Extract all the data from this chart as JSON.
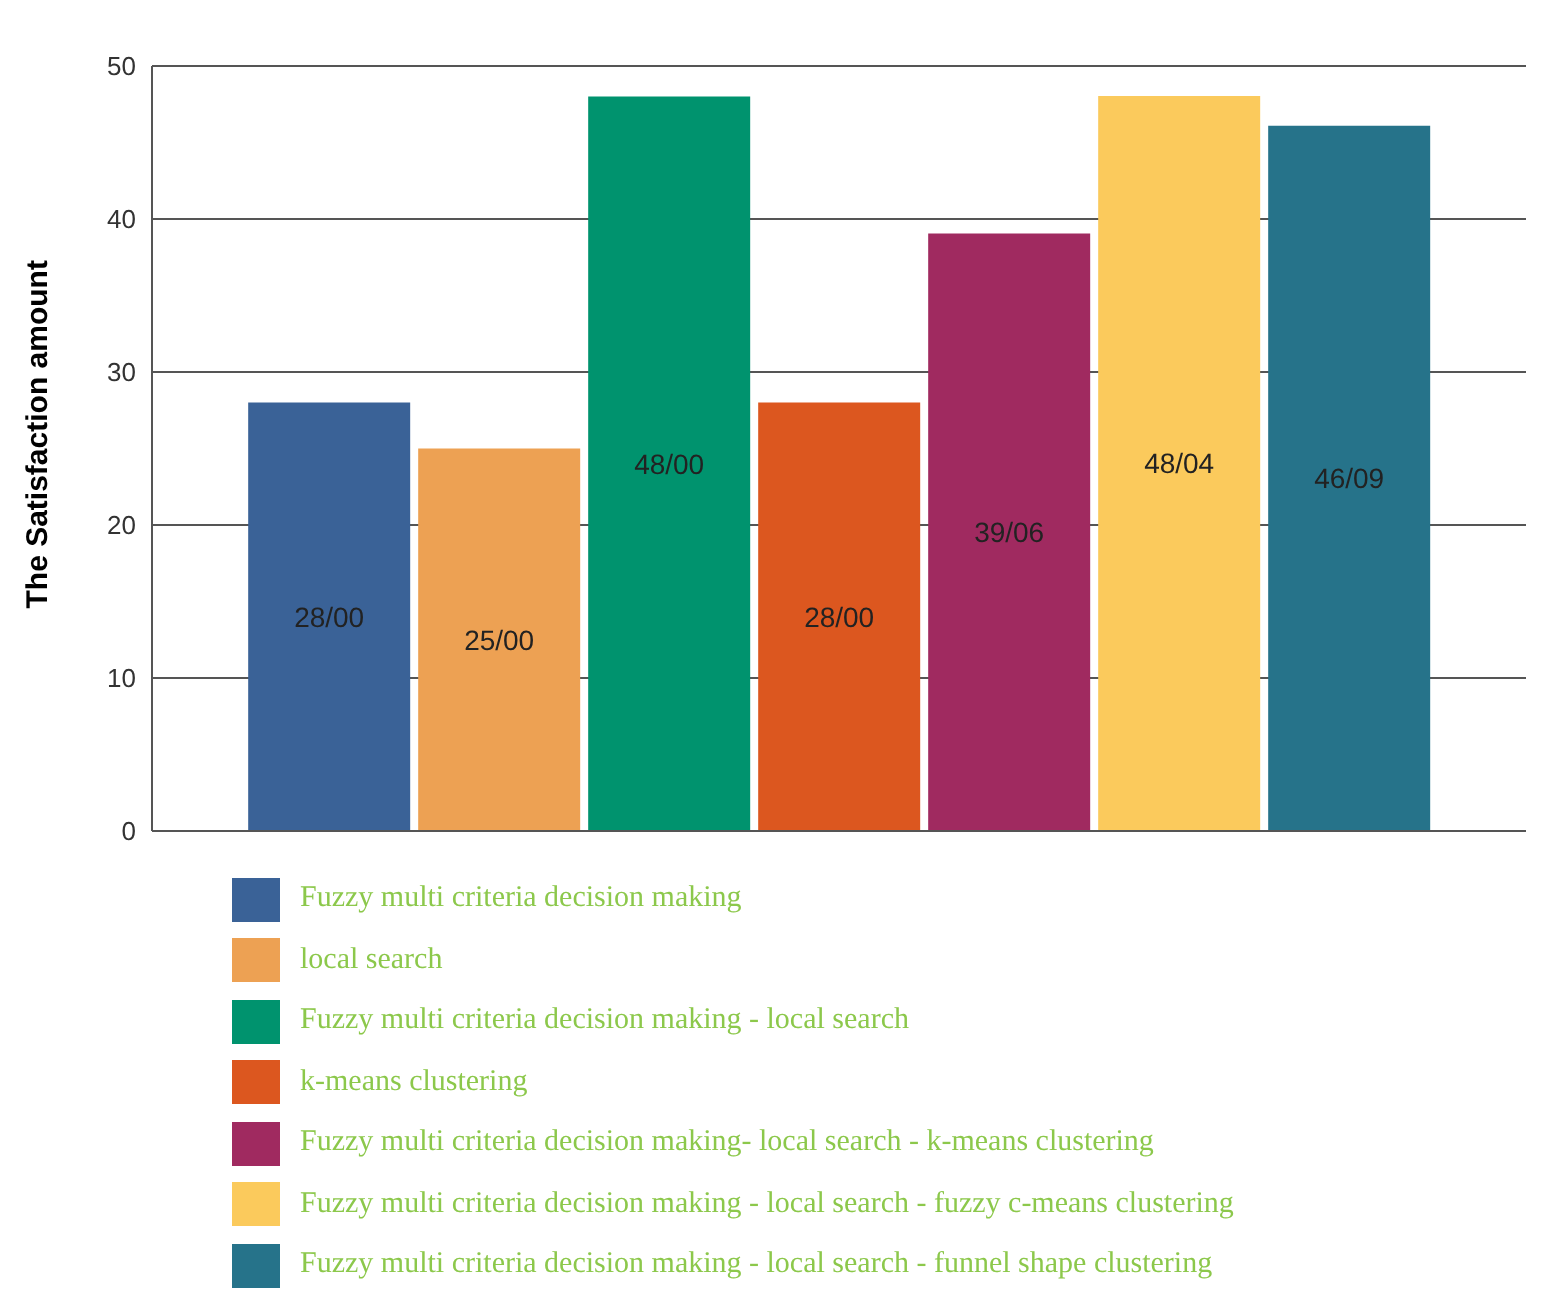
{
  "chart_data": {
    "type": "bar",
    "ylabel": "The Satisfaction amount",
    "categories": [
      null
    ],
    "series": [
      {
        "name": "Fuzzy multi criteria decision making",
        "color": "#3a6297",
        "values": [
          28
        ],
        "value_labels": [
          "28/00"
        ]
      },
      {
        "name": "local search",
        "color": "#eda153",
        "values": [
          25
        ],
        "value_labels": [
          "25/00"
        ]
      },
      {
        "name": "Fuzzy multi criteria decision making - local search",
        "color": "#00936e",
        "values": [
          48
        ],
        "value_labels": [
          "48/00"
        ]
      },
      {
        "name": "k-means clustering",
        "color": "#dc571f",
        "values": [
          28
        ],
        "value_labels": [
          "28/00"
        ]
      },
      {
        "name": "Fuzzy multi criteria decision making- local search - k-means clustering",
        "color": "#a02a60",
        "values": [
          39.06
        ],
        "value_labels": [
          "39/06"
        ]
      },
      {
        "name": "Fuzzy multi criteria decision making - local search - fuzzy c-means clustering",
        "color": "#fbca5c",
        "values": [
          48.04
        ],
        "value_labels": [
          "48/04"
        ]
      },
      {
        "name": "Fuzzy multi criteria decision making - local search - funnel shape clustering",
        "color": "#26738a",
        "values": [
          46.09
        ],
        "value_labels": [
          "46/09"
        ]
      }
    ],
    "ylim": [
      0,
      50
    ],
    "yticks": [
      0,
      10,
      20,
      30,
      40,
      50
    ],
    "grid": "y",
    "legend": "bottom"
  }
}
